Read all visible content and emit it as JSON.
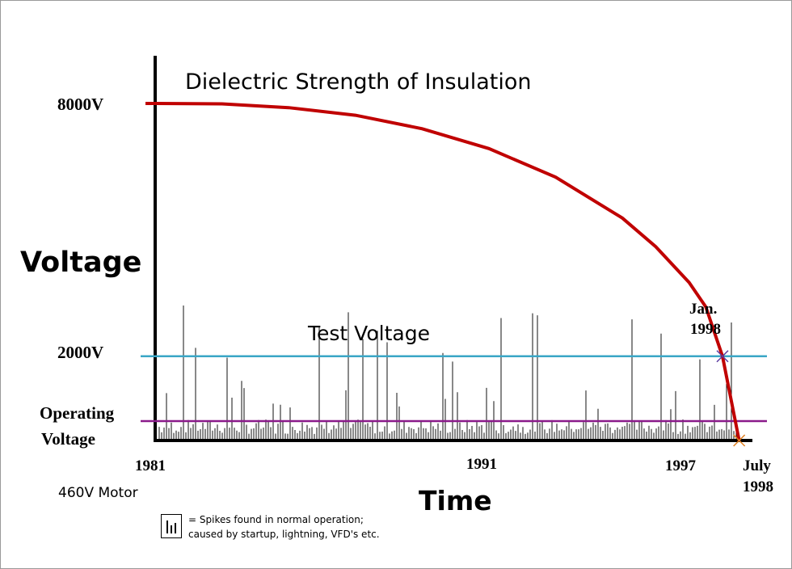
{
  "chart_data": {
    "type": "line",
    "title": "Dielectric Strength of Insulation",
    "ylabel": "Voltage",
    "xlabel": "Time",
    "y_tick_labels": [
      "8000V",
      "2000V"
    ],
    "y_tick_label_operating": [
      "Operating",
      "Voltage"
    ],
    "x_tick_labels": [
      "1981",
      "1991",
      "1997"
    ],
    "x_end_label": [
      "July",
      "1998"
    ],
    "series": [
      {
        "name": "Dielectric Strength of Insulation",
        "color": "#c00000",
        "x": [
          1981,
          1983,
          1985,
          1987,
          1989,
          1991,
          1993,
          1995,
          1996,
          1997,
          1997.5,
          1998,
          1998.5
        ],
        "y": [
          8000,
          7990,
          7900,
          7720,
          7400,
          6930,
          6250,
          5280,
          4600,
          3750,
          3170,
          2000,
          0
        ]
      }
    ],
    "reference_lines": [
      {
        "name": "Test Voltage",
        "y": 2000,
        "color": "#3aa6c6"
      },
      {
        "name": "Operating Voltage",
        "y": 460,
        "color": "#8a1a8a"
      }
    ],
    "annotations": [
      {
        "text": [
          "Jan.",
          "1998"
        ],
        "x": 1998,
        "y": 2000,
        "marker": "x",
        "marker_color": "#5a3aa0"
      },
      {
        "text": [
          "July",
          "1998"
        ],
        "x": 1998.5,
        "y": 0,
        "marker": "x",
        "marker_color": "#e08020"
      }
    ],
    "spikes_note": "= Spikes found in normal operation; caused by startup, lightning, VFD's etc.",
    "spikes_note_lines": [
      "= Spikes found in normal operation;",
      "caused by startup, lightning, VFD's etc."
    ],
    "caption": "460V Motor",
    "xlim": [
      1981,
      1999
    ],
    "ylim": [
      0,
      9400
    ],
    "grid": false,
    "legend": "bottom-left"
  }
}
